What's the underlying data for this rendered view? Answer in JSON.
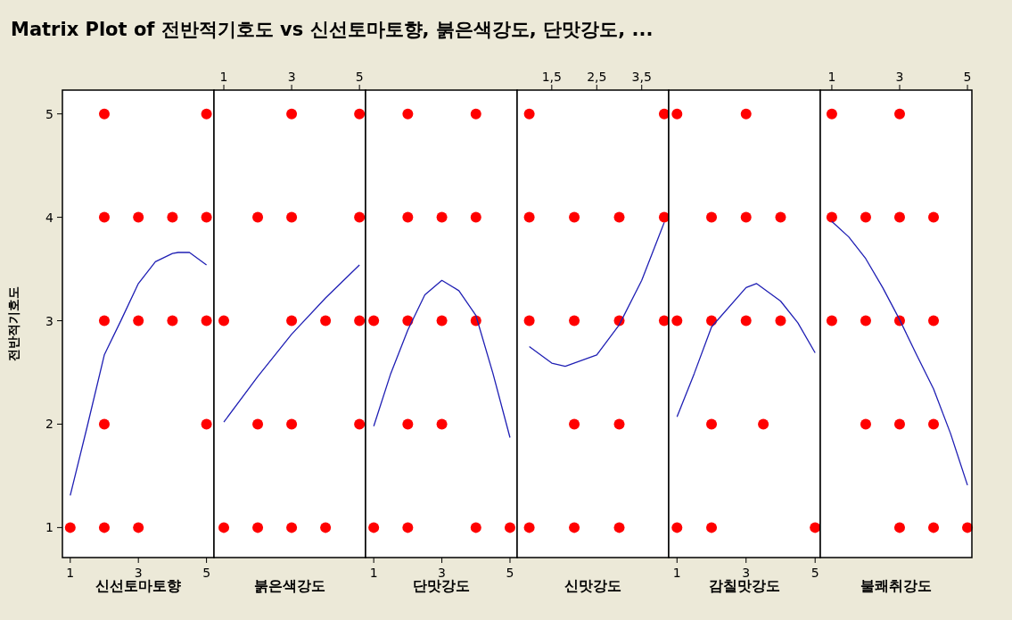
{
  "chart_data": [
    {
      "type": "scatter",
      "title": "Matrix Plot of 전반적기호도 vs 신선토마토향, 붉은색강도, 단맛강도, ...",
      "ylabel": "전반적기호도",
      "xlabel": "신선토마토향",
      "xlim": [
        0.77,
        5.22
      ],
      "xticks": [
        1,
        3,
        5
      ],
      "ylim": [
        0.71,
        5.23
      ],
      "yticks": [
        1,
        2,
        3,
        4,
        5
      ],
      "series": [
        {
          "marker": "circle",
          "color": "#ff0000",
          "x": [
            2,
            5,
            2,
            3,
            4,
            5,
            2,
            3,
            4,
            5,
            2,
            5,
            1,
            2,
            3
          ],
          "values": [
            5,
            5,
            4,
            4,
            4,
            4,
            3,
            3,
            3,
            3,
            2,
            2,
            1,
            1,
            1
          ]
        },
        {
          "type": "line",
          "color": "#1f1fb4",
          "x": [
            1,
            1.5,
            2,
            2.5,
            3,
            3.5,
            4,
            4.17,
            4.5,
            5
          ],
          "values": [
            1.31,
            1.98,
            2.67,
            3.01,
            3.36,
            3.57,
            3.65,
            3.66,
            3.66,
            3.54
          ]
        }
      ]
    },
    {
      "type": "scatter",
      "xlabel": "붉은색강도",
      "xlim": [
        0.71,
        5.18
      ],
      "xticks": [
        1,
        3,
        5
      ],
      "ylim": [
        0.71,
        5.23
      ],
      "tick_labels": "x",
      "series": [
        {
          "marker": "circle",
          "color": "#ff0000",
          "x": [
            3,
            5,
            2,
            3,
            5,
            1,
            3,
            4,
            5,
            2,
            3,
            5,
            1,
            2,
            3,
            4
          ],
          "values": [
            5,
            5,
            4,
            4,
            4,
            3,
            3,
            3,
            3,
            2,
            2,
            2,
            1,
            1,
            1,
            1
          ]
        },
        {
          "type": "line",
          "color": "#1f1fb4",
          "x": [
            1,
            2,
            3,
            4,
            5
          ],
          "values": [
            2.02,
            2.46,
            2.87,
            3.22,
            3.54
          ]
        }
      ]
    },
    {
      "type": "scatter",
      "xlabel": "단맛강도",
      "xlim": [
        0.76,
        5.21
      ],
      "xticks": [
        1,
        3,
        5
      ],
      "ylim": [
        0.71,
        5.23
      ],
      "tick_labels": "x",
      "series": [
        {
          "marker": "circle",
          "color": "#ff0000",
          "x": [
            2,
            4,
            2,
            3,
            4,
            1,
            2,
            3,
            4,
            2,
            3,
            1,
            2,
            4,
            5
          ],
          "values": [
            5,
            5,
            4,
            4,
            4,
            3,
            3,
            3,
            3,
            2,
            2,
            1,
            1,
            1,
            1
          ]
        },
        {
          "type": "line",
          "color": "#1f1fb4",
          "x": [
            1,
            1.5,
            2,
            2.5,
            3,
            3.5,
            4,
            4.5,
            5
          ],
          "values": [
            1.98,
            2.49,
            2.91,
            3.25,
            3.39,
            3.29,
            3.05,
            2.49,
            1.87
          ]
        }
      ]
    },
    {
      "type": "scatter",
      "xlabel": "신맛강도",
      "xlim": [
        0.73,
        4.1
      ],
      "xticks": [
        {
          "value": 1.5,
          "label": "1,5"
        },
        {
          "value": 2.5,
          "label": "2,5"
        },
        {
          "value": 3.5,
          "label": "3,5"
        }
      ],
      "ylim": [
        0.71,
        5.23
      ],
      "tick_labels": "x",
      "series": [
        {
          "marker": "circle",
          "color": "#ff0000",
          "x": [
            1,
            4,
            1,
            2,
            3,
            4,
            1,
            2,
            3,
            4,
            2,
            3,
            1,
            2,
            3
          ],
          "values": [
            5,
            5,
            4,
            4,
            4,
            4,
            3,
            3,
            3,
            3,
            2,
            2,
            1,
            1,
            1
          ]
        },
        {
          "type": "line",
          "color": "#1f1fb4",
          "x": [
            1,
            1.5,
            1.8,
            2.5,
            3,
            3.5,
            4
          ],
          "values": [
            2.75,
            2.59,
            2.56,
            2.67,
            2.96,
            3.39,
            3.95
          ]
        }
      ]
    },
    {
      "type": "scatter",
      "xlabel": "감칠맛강도",
      "xlim": [
        0.76,
        5.15
      ],
      "xticks": [
        1,
        3,
        5
      ],
      "ylim": [
        0.71,
        5.23
      ],
      "tick_labels": "x",
      "series": [
        {
          "marker": "circle",
          "color": "#ff0000",
          "x": [
            1,
            3,
            2,
            3,
            4,
            1,
            2,
            3,
            4,
            2,
            3.5,
            1,
            2,
            5
          ],
          "values": [
            5,
            5,
            4,
            4,
            4,
            3,
            3,
            3,
            3,
            2,
            2,
            1,
            1,
            1
          ]
        },
        {
          "type": "line",
          "color": "#1f1fb4",
          "x": [
            1,
            1.5,
            2,
            3,
            3.3,
            4,
            4.5,
            5
          ],
          "values": [
            2.07,
            2.49,
            2.94,
            3.32,
            3.36,
            3.19,
            2.98,
            2.69
          ]
        }
      ]
    },
    {
      "type": "scatter",
      "xlabel": "불쾌취강도",
      "xlim": [
        0.66,
        5.13
      ],
      "xticks": [
        1,
        3,
        5
      ],
      "ylim": [
        0.71,
        5.23
      ],
      "tick_labels": "x",
      "series": [
        {
          "marker": "circle",
          "color": "#ff0000",
          "x": [
            1,
            3,
            1,
            2,
            3,
            4,
            1,
            2,
            3,
            4,
            2,
            3,
            4,
            3,
            4,
            5
          ],
          "values": [
            5,
            5,
            4,
            4,
            4,
            4,
            3,
            3,
            3,
            3,
            2,
            2,
            2,
            1,
            1,
            1
          ]
        },
        {
          "type": "line",
          "color": "#1f1fb4",
          "x": [
            1,
            1.5,
            2,
            2.5,
            3,
            3.5,
            4,
            4.5,
            5
          ],
          "values": [
            3.96,
            3.81,
            3.6,
            3.32,
            3.01,
            2.67,
            2.34,
            1.91,
            1.41
          ]
        }
      ]
    }
  ]
}
